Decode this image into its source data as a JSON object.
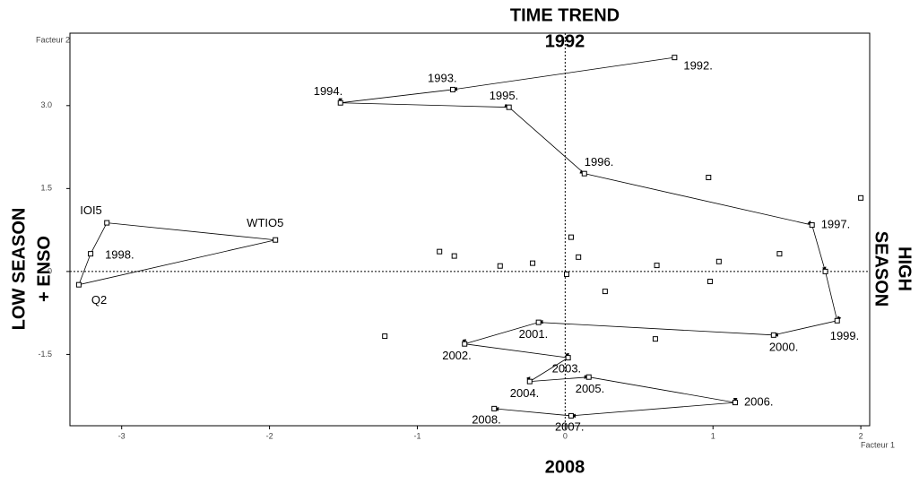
{
  "chart_data": {
    "type": "scatter",
    "annotations": {
      "top_line1": "TIME TREND",
      "top_line2": "1992",
      "bottom": "2008",
      "left_line1": "LOW SEASON",
      "left_line2": "+ ENSO",
      "right_line1": "HIGH",
      "right_line2": "SEASON"
    },
    "xlabel": "Facteur 1",
    "ylabel": "Facteur 2",
    "xlim": [
      -3.35,
      2.06
    ],
    "ylim": [
      -2.79,
      4.31
    ],
    "xticks": [
      -3,
      -2,
      -1,
      0,
      1,
      2
    ],
    "yticks": [
      {
        "value": 3,
        "label": "3.0"
      },
      1.5,
      0,
      -1.5
    ],
    "color": "#000000",
    "trajectory": {
      "labels": [
        "1992.",
        "1993.",
        "1994.",
        "1995.",
        "1996.",
        "1997.",
        null,
        "1999.",
        "2000.",
        "2001.",
        "2002.",
        "2003.",
        "2004.",
        "2005.",
        "2006.",
        "2007.",
        "2008."
      ],
      "x": [
        0.74,
        -0.76,
        -1.52,
        -0.38,
        0.13,
        1.67,
        1.76,
        1.84,
        1.41,
        -0.18,
        -0.68,
        0.02,
        -0.24,
        0.16,
        1.15,
        0.04,
        -0.48
      ],
      "y": [
        3.87,
        3.29,
        3.05,
        2.97,
        1.77,
        0.84,
        0.0,
        -0.89,
        -1.15,
        -0.92,
        -1.31,
        -1.56,
        -1.99,
        -1.91,
        -2.37,
        -2.61,
        -2.48
      ]
    },
    "indicators": {
      "labels": [
        "IOI5",
        "WTIO5",
        "Q2",
        "1998."
      ],
      "x": [
        -3.1,
        -1.96,
        -3.29,
        -3.21
      ],
      "y": [
        0.88,
        0.57,
        -0.24,
        0.32
      ]
    },
    "points": {
      "x": [
        0.97,
        2.0,
        0.04,
        -0.85,
        -0.75,
        -0.44,
        -0.22,
        0.09,
        0.01,
        1.45,
        0.62,
        1.04,
        0.98,
        0.27,
        -1.22,
        0.61
      ],
      "y": [
        1.7,
        1.33,
        0.62,
        0.36,
        0.28,
        0.1,
        0.15,
        0.26,
        -0.05,
        0.32,
        0.11,
        0.18,
        -0.18,
        -0.36,
        -1.17,
        -1.22
      ]
    }
  }
}
